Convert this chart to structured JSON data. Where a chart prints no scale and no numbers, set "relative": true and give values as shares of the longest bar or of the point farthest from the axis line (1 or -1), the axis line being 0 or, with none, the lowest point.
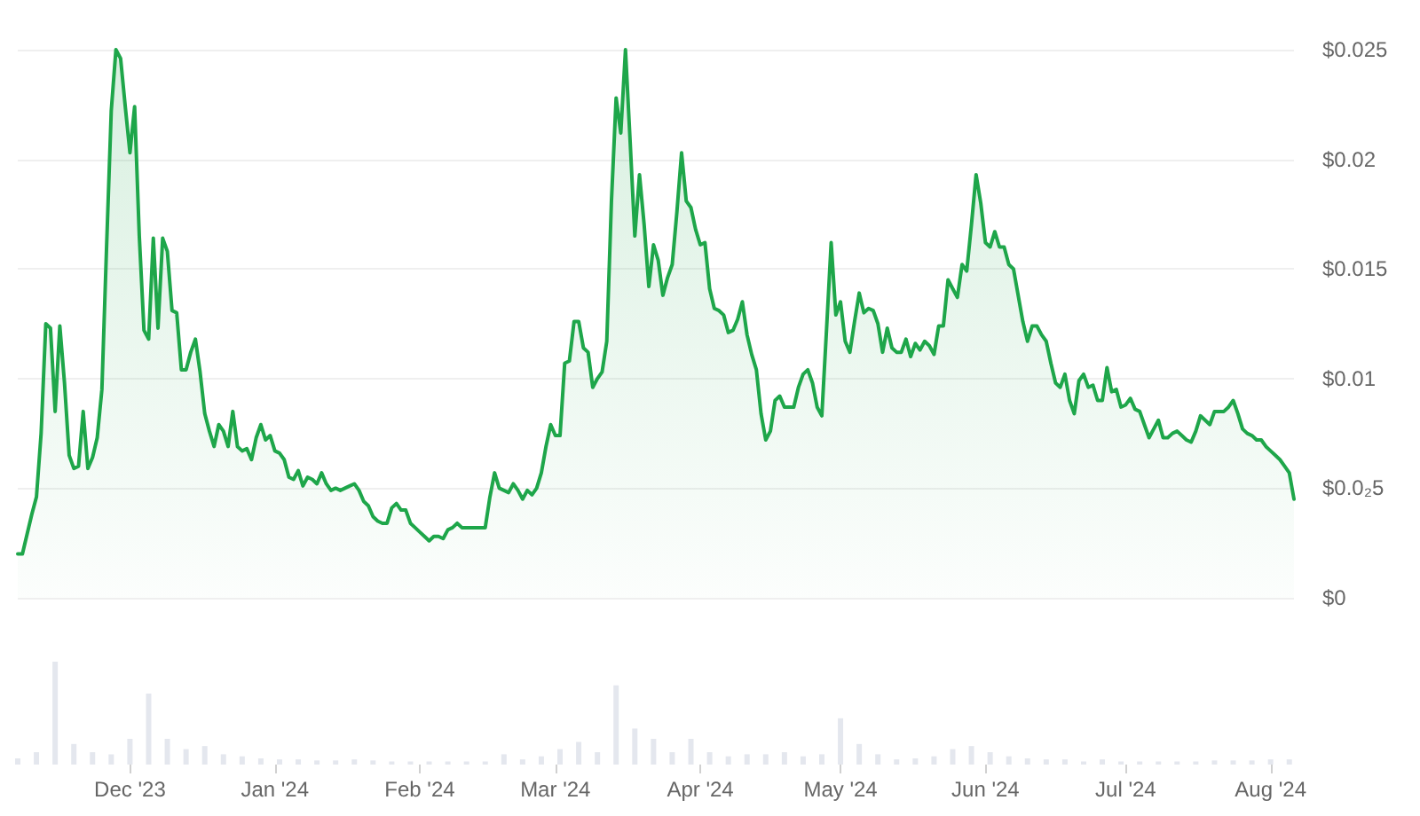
{
  "chart_data": [
    {
      "type": "area",
      "color": "#1ea64a",
      "grid": "y",
      "marker": "none",
      "tick_labels": "y",
      "xlim": [
        "2023-11-07",
        "2024-08-06"
      ],
      "ylim": [
        0,
        0.025
      ],
      "yticks": [
        {
          "value": 0,
          "label": "$0"
        },
        {
          "value": 0.005,
          "label": "$0.0₂5"
        },
        {
          "value": 0.01,
          "label": "$0.01"
        },
        {
          "value": 0.015,
          "label": "$0.015"
        },
        {
          "value": 0.02,
          "label": "$0.02"
        },
        {
          "value": 0.025,
          "label": "$0.025"
        }
      ],
      "x": [
        "2023-11-07",
        "2023-11-08",
        "2023-11-10",
        "2023-11-11",
        "2023-11-12",
        "2023-11-13",
        "2023-11-14",
        "2023-11-15",
        "2023-11-16",
        "2023-11-17",
        "2023-11-18",
        "2023-11-19",
        "2023-11-20",
        "2023-11-21",
        "2023-11-22",
        "2023-11-23",
        "2023-11-24",
        "2023-11-25",
        "2023-11-26",
        "2023-11-27",
        "2023-11-28",
        "2023-11-29",
        "2023-11-30",
        "2023-12-01",
        "2023-12-02",
        "2023-12-03",
        "2023-12-04",
        "2023-12-05",
        "2023-12-06",
        "2023-12-07",
        "2023-12-08",
        "2023-12-09",
        "2023-12-10",
        "2023-12-11",
        "2023-12-12",
        "2023-12-13",
        "2023-12-14",
        "2023-12-15",
        "2023-12-16",
        "2023-12-17",
        "2023-12-18",
        "2023-12-19",
        "2023-12-20",
        "2023-12-21",
        "2023-12-22",
        "2023-12-23",
        "2023-12-24",
        "2023-12-25",
        "2023-12-26",
        "2023-12-27",
        "2023-12-28",
        "2023-12-29",
        "2023-12-30",
        "2023-12-31",
        "2024-01-01",
        "2024-01-02",
        "2024-01-03",
        "2024-01-04",
        "2024-01-05",
        "2024-01-06",
        "2024-01-07",
        "2024-01-08",
        "2024-01-09",
        "2024-01-10",
        "2024-01-11",
        "2024-01-12",
        "2024-01-13",
        "2024-01-14",
        "2024-01-15",
        "2024-01-16",
        "2024-01-17",
        "2024-01-18",
        "2024-01-19",
        "2024-01-20",
        "2024-01-21",
        "2024-01-22",
        "2024-01-23",
        "2024-01-24",
        "2024-01-25",
        "2024-01-26",
        "2024-01-27",
        "2024-01-28",
        "2024-01-29",
        "2024-01-30",
        "2024-01-31",
        "2024-02-01",
        "2024-02-02",
        "2024-02-03",
        "2024-02-04",
        "2024-02-05",
        "2024-02-06",
        "2024-02-07",
        "2024-02-08",
        "2024-02-09",
        "2024-02-10",
        "2024-02-12",
        "2024-02-14",
        "2024-02-15",
        "2024-02-16",
        "2024-02-17",
        "2024-02-18",
        "2024-02-19",
        "2024-02-20",
        "2024-02-21",
        "2024-02-22",
        "2024-02-23",
        "2024-02-24",
        "2024-02-25",
        "2024-02-26",
        "2024-02-27",
        "2024-02-28",
        "2024-02-29",
        "2024-03-01",
        "2024-03-02",
        "2024-03-03",
        "2024-03-04",
        "2024-03-05",
        "2024-03-06",
        "2024-03-07",
        "2024-03-08",
        "2024-03-09",
        "2024-03-10",
        "2024-03-11",
        "2024-03-12",
        "2024-03-13",
        "2024-03-14",
        "2024-03-15",
        "2024-03-16",
        "2024-03-17",
        "2024-03-18",
        "2024-03-19",
        "2024-03-20",
        "2024-03-21",
        "2024-03-22",
        "2024-03-23",
        "2024-03-24",
        "2024-03-25",
        "2024-03-26",
        "2024-03-27",
        "2024-03-28",
        "2024-03-29",
        "2024-03-30",
        "2024-03-31",
        "2024-04-01",
        "2024-04-02",
        "2024-04-03",
        "2024-04-04",
        "2024-04-05",
        "2024-04-06",
        "2024-04-07",
        "2024-04-08",
        "2024-04-09",
        "2024-04-10",
        "2024-04-11",
        "2024-04-12",
        "2024-04-13",
        "2024-04-14",
        "2024-04-15",
        "2024-04-16",
        "2024-04-17",
        "2024-04-18",
        "2024-04-19",
        "2024-04-20",
        "2024-04-21",
        "2024-04-22",
        "2024-04-23",
        "2024-04-24",
        "2024-04-25",
        "2024-04-26",
        "2024-04-27",
        "2024-04-28",
        "2024-04-29",
        "2024-04-30",
        "2024-05-01",
        "2024-05-02",
        "2024-05-03",
        "2024-05-04",
        "2024-05-05",
        "2024-05-06",
        "2024-05-07",
        "2024-05-08",
        "2024-05-09",
        "2024-05-10",
        "2024-05-11",
        "2024-05-12",
        "2024-05-13",
        "2024-05-14",
        "2024-05-15",
        "2024-05-16",
        "2024-05-17",
        "2024-05-18",
        "2024-05-19",
        "2024-05-20",
        "2024-05-21",
        "2024-05-22",
        "2024-05-23",
        "2024-05-24",
        "2024-05-25",
        "2024-05-26",
        "2024-05-27",
        "2024-05-28",
        "2024-05-29",
        "2024-05-30",
        "2024-05-31",
        "2024-06-01",
        "2024-06-02",
        "2024-06-03",
        "2024-06-04",
        "2024-06-05",
        "2024-06-06",
        "2024-06-07",
        "2024-06-08",
        "2024-06-09",
        "2024-06-10",
        "2024-06-11",
        "2024-06-12",
        "2024-06-13",
        "2024-06-14",
        "2024-06-15",
        "2024-06-16",
        "2024-06-17",
        "2024-06-18",
        "2024-06-19",
        "2024-06-20",
        "2024-06-21",
        "2024-06-22",
        "2024-06-23",
        "2024-06-24",
        "2024-06-25",
        "2024-06-26",
        "2024-06-27",
        "2024-06-28",
        "2024-06-29",
        "2024-06-30",
        "2024-07-01",
        "2024-07-02",
        "2024-07-03",
        "2024-07-04",
        "2024-07-05",
        "2024-07-06",
        "2024-07-07",
        "2024-07-08",
        "2024-07-09",
        "2024-07-10",
        "2024-07-11",
        "2024-07-12",
        "2024-07-13",
        "2024-07-14",
        "2024-07-15",
        "2024-07-16",
        "2024-07-17",
        "2024-07-18",
        "2024-07-19",
        "2024-07-20",
        "2024-07-21",
        "2024-07-22",
        "2024-07-23",
        "2024-07-24",
        "2024-07-25",
        "2024-07-26",
        "2024-07-27",
        "2024-07-28",
        "2024-07-29",
        "2024-07-30",
        "2024-07-31",
        "2024-08-01",
        "2024-08-02",
        "2024-08-03",
        "2024-08-04",
        "2024-08-05",
        "2024-08-06"
      ],
      "values": [
        0.002,
        0.002,
        0.0038,
        0.0046,
        0.0075,
        0.0125,
        0.0123,
        0.0085,
        0.0124,
        0.0098,
        0.0065,
        0.0059,
        0.006,
        0.0085,
        0.0059,
        0.0064,
        0.0073,
        0.0095,
        0.016,
        0.0222,
        0.025,
        0.0246,
        0.0224,
        0.0203,
        0.0224,
        0.0165,
        0.0122,
        0.0118,
        0.0164,
        0.0123,
        0.0164,
        0.0158,
        0.0131,
        0.013,
        0.0104,
        0.0104,
        0.0112,
        0.0118,
        0.0103,
        0.0084,
        0.0076,
        0.0069,
        0.0079,
        0.0076,
        0.0069,
        0.0085,
        0.0069,
        0.0067,
        0.0068,
        0.0063,
        0.0073,
        0.0079,
        0.0072,
        0.0074,
        0.0067,
        0.0066,
        0.0063,
        0.0055,
        0.0054,
        0.0058,
        0.0051,
        0.0055,
        0.0054,
        0.0052,
        0.0057,
        0.0052,
        0.0049,
        0.005,
        0.0049,
        0.005,
        0.0051,
        0.0052,
        0.0049,
        0.0044,
        0.0042,
        0.0037,
        0.0035,
        0.0034,
        0.0034,
        0.0041,
        0.0043,
        0.004,
        0.004,
        0.0034,
        0.0032,
        0.003,
        0.0028,
        0.0026,
        0.0028,
        0.0028,
        0.0027,
        0.0031,
        0.0032,
        0.0034,
        0.0032,
        0.0032,
        0.0032,
        0.0032,
        0.0046,
        0.0057,
        0.005,
        0.0049,
        0.0048,
        0.0052,
        0.0049,
        0.0045,
        0.0049,
        0.0047,
        0.005,
        0.0057,
        0.0069,
        0.0079,
        0.0074,
        0.0074,
        0.0107,
        0.0108,
        0.0126,
        0.0126,
        0.0114,
        0.0112,
        0.0096,
        0.01,
        0.0103,
        0.0117,
        0.0181,
        0.0228,
        0.0212,
        0.025,
        0.0208,
        0.0165,
        0.0193,
        0.017,
        0.0142,
        0.0161,
        0.0154,
        0.0138,
        0.0146,
        0.0152,
        0.0176,
        0.0203,
        0.0181,
        0.0178,
        0.0168,
        0.0161,
        0.0162,
        0.0141,
        0.0132,
        0.0131,
        0.0129,
        0.0121,
        0.0122,
        0.0127,
        0.0135,
        0.012,
        0.0111,
        0.0104,
        0.0084,
        0.0072,
        0.0076,
        0.009,
        0.0092,
        0.0087,
        0.0087,
        0.0087,
        0.0096,
        0.0102,
        0.0104,
        0.0098,
        0.0087,
        0.0083,
        0.0122,
        0.0162,
        0.0129,
        0.0135,
        0.0117,
        0.0112,
        0.0126,
        0.0139,
        0.013,
        0.0132,
        0.0131,
        0.0125,
        0.0112,
        0.0123,
        0.0114,
        0.0112,
        0.0112,
        0.0118,
        0.011,
        0.0116,
        0.0113,
        0.0117,
        0.0115,
        0.0111,
        0.0124,
        0.0124,
        0.0145,
        0.0141,
        0.0137,
        0.0152,
        0.0149,
        0.017,
        0.0193,
        0.018,
        0.0162,
        0.016,
        0.0167,
        0.016,
        0.016,
        0.0152,
        0.015,
        0.0138,
        0.0126,
        0.0117,
        0.0124,
        0.0124,
        0.012,
        0.0117,
        0.0107,
        0.0098,
        0.0096,
        0.0102,
        0.009,
        0.0084,
        0.0099,
        0.0102,
        0.0096,
        0.0097,
        0.009,
        0.009,
        0.0105,
        0.0094,
        0.0095,
        0.0087,
        0.0088,
        0.0091,
        0.0086,
        0.0085,
        0.0079,
        0.0073,
        0.0077,
        0.0081,
        0.0073,
        0.0073,
        0.0075,
        0.0076,
        0.0074,
        0.0072,
        0.0071,
        0.0076,
        0.0083,
        0.0081,
        0.0079,
        0.0085,
        0.0085,
        0.0085,
        0.0087,
        0.009,
        0.0084,
        0.0077,
        0.0075,
        0.0074,
        0.0072,
        0.0072,
        0.0069,
        0.0067,
        0.0065,
        0.0063,
        0.006,
        0.0057,
        0.0045
      ]
    },
    {
      "type": "bar",
      "relative": true,
      "color": "#e4e7ee",
      "tick_labels": "x",
      "xlim": [
        "2023-11-07",
        "2024-08-06"
      ],
      "xticks": [
        {
          "value": "2023-12-01",
          "label": "Dec '23"
        },
        {
          "value": "2024-01-01",
          "label": "Jan '24"
        },
        {
          "value": "2024-02-01",
          "label": "Feb '24"
        },
        {
          "value": "2024-03-01",
          "label": "Mar '24"
        },
        {
          "value": "2024-04-01",
          "label": "Apr '24"
        },
        {
          "value": "2024-05-01",
          "label": "May '24"
        },
        {
          "value": "2024-06-01",
          "label": "Jun '24"
        },
        {
          "value": "2024-07-01",
          "label": "Jul '24"
        },
        {
          "value": "2024-08-01",
          "label": "Aug '24"
        }
      ],
      "x": [
        "2023-11-07",
        "2023-11-11",
        "2023-11-15",
        "2023-11-19",
        "2023-11-23",
        "2023-11-27",
        "2023-12-01",
        "2023-12-05",
        "2023-12-09",
        "2023-12-13",
        "2023-12-17",
        "2023-12-21",
        "2023-12-25",
        "2023-12-29",
        "2024-01-02",
        "2024-01-06",
        "2024-01-10",
        "2024-01-14",
        "2024-01-18",
        "2024-01-22",
        "2024-01-26",
        "2024-01-30",
        "2024-02-03",
        "2024-02-07",
        "2024-02-11",
        "2024-02-15",
        "2024-02-19",
        "2024-02-23",
        "2024-02-27",
        "2024-03-02",
        "2024-03-06",
        "2024-03-10",
        "2024-03-14",
        "2024-03-18",
        "2024-03-22",
        "2024-03-26",
        "2024-03-30",
        "2024-04-03",
        "2024-04-07",
        "2024-04-11",
        "2024-04-15",
        "2024-04-19",
        "2024-04-23",
        "2024-04-27",
        "2024-05-01",
        "2024-05-05",
        "2024-05-09",
        "2024-05-13",
        "2024-05-17",
        "2024-05-21",
        "2024-05-25",
        "2024-05-29",
        "2024-06-02",
        "2024-06-06",
        "2024-06-10",
        "2024-06-14",
        "2024-06-18",
        "2024-06-22",
        "2024-06-26",
        "2024-06-30",
        "2024-07-04",
        "2024-07-08",
        "2024-07-12",
        "2024-07-16",
        "2024-07-20",
        "2024-07-24",
        "2024-07-28",
        "2024-08-01",
        "2024-08-05"
      ],
      "values": [
        0.06,
        0.12,
        1,
        0.2,
        0.12,
        0.1,
        0.25,
        0.69,
        0.25,
        0.15,
        0.18,
        0.1,
        0.08,
        0.06,
        0.05,
        0.05,
        0.04,
        0.04,
        0.05,
        0.04,
        0.03,
        0.03,
        0.03,
        0.03,
        0.03,
        0.03,
        0.1,
        0.05,
        0.08,
        0.15,
        0.22,
        0.12,
        0.77,
        0.35,
        0.25,
        0.12,
        0.25,
        0.12,
        0.08,
        0.1,
        0.1,
        0.12,
        0.08,
        0.1,
        0.45,
        0.2,
        0.1,
        0.05,
        0.06,
        0.08,
        0.15,
        0.18,
        0.12,
        0.08,
        0.06,
        0.05,
        0.05,
        0.03,
        0.05,
        0.03,
        0.03,
        0.03,
        0.03,
        0.03,
        0.04,
        0.04,
        0.04,
        0.05,
        0.05
      ]
    }
  ]
}
